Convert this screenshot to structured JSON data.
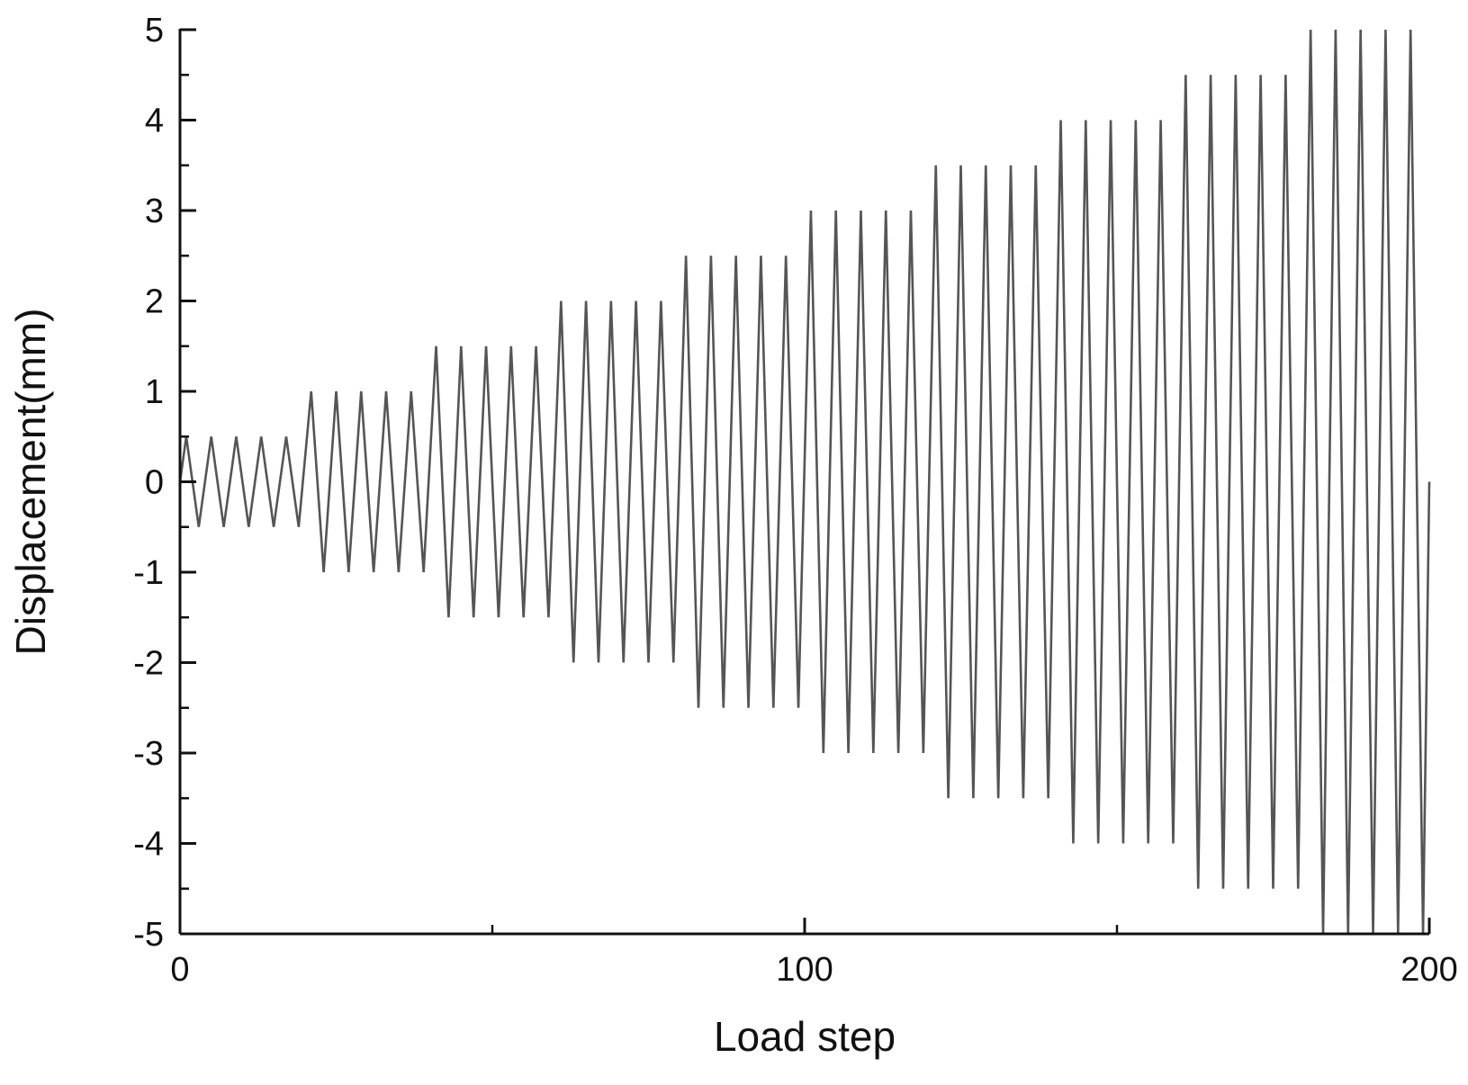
{
  "chart_data": {
    "type": "line",
    "title": "",
    "xlabel": "Load step",
    "ylabel": "Displacement(mm)",
    "xlim": [
      0,
      200
    ],
    "ylim": [
      -5,
      5
    ],
    "x_ticks_major": [
      0,
      100,
      200
    ],
    "x_ticks_minor": [
      50,
      150
    ],
    "y_ticks": [
      -5,
      -4,
      -3,
      -2,
      -1,
      0,
      1,
      2,
      3,
      4,
      5
    ],
    "grid": false,
    "legend": "none",
    "line_color": "#555555",
    "description_of_pattern": {
      "amplitudes_mm": [
        0.5,
        1.0,
        1.5,
        2.0,
        2.5,
        3.0,
        3.5,
        4.0,
        4.5,
        5.0
      ],
      "cycles_per_amplitude": 5,
      "steps_per_cycle": 4
    },
    "series": [
      {
        "x": [
          0,
          1,
          3,
          5,
          7,
          9,
          11,
          13,
          15,
          17,
          19,
          21,
          23,
          25,
          27,
          29,
          31,
          33,
          35,
          37,
          39,
          41,
          43,
          45,
          47,
          49,
          51,
          53,
          55,
          57,
          59,
          61,
          63,
          65,
          67,
          69,
          71,
          73,
          75,
          77,
          79,
          81,
          83,
          85,
          87,
          89,
          91,
          93,
          95,
          97,
          99,
          101,
          103,
          105,
          107,
          109,
          111,
          113,
          115,
          117,
          119,
          121,
          123,
          125,
          127,
          129,
          131,
          133,
          135,
          137,
          139,
          141,
          143,
          145,
          147,
          149,
          151,
          153,
          155,
          157,
          159,
          161,
          163,
          165,
          167,
          169,
          171,
          173,
          175,
          177,
          179,
          181,
          183,
          185,
          187,
          189,
          191,
          193,
          195,
          197,
          199,
          200
        ],
        "y": [
          0,
          0.5,
          -0.5,
          0.5,
          -0.5,
          0.5,
          -0.5,
          0.5,
          -0.5,
          0.5,
          -0.5,
          1,
          -1,
          1,
          -1,
          1,
          -1,
          1,
          -1,
          1,
          -1,
          1.5,
          -1.5,
          1.5,
          -1.5,
          1.5,
          -1.5,
          1.5,
          -1.5,
          1.5,
          -1.5,
          2,
          -2,
          2,
          -2,
          2,
          -2,
          2,
          -2,
          2,
          -2,
          2.5,
          -2.5,
          2.5,
          -2.5,
          2.5,
          -2.5,
          2.5,
          -2.5,
          2.5,
          -2.5,
          3,
          -3,
          3,
          -3,
          3,
          -3,
          3,
          -3,
          3,
          -3,
          3.5,
          -3.5,
          3.5,
          -3.5,
          3.5,
          -3.5,
          3.5,
          -3.5,
          3.5,
          -3.5,
          4,
          -4,
          4,
          -4,
          4,
          -4,
          4,
          -4,
          4,
          -4,
          4.5,
          -4.5,
          4.5,
          -4.5,
          4.5,
          -4.5,
          4.5,
          -4.5,
          4.5,
          -4.5,
          5,
          -5,
          5,
          -5,
          5,
          -5,
          5,
          -5,
          5,
          -5,
          0
        ]
      }
    ]
  }
}
